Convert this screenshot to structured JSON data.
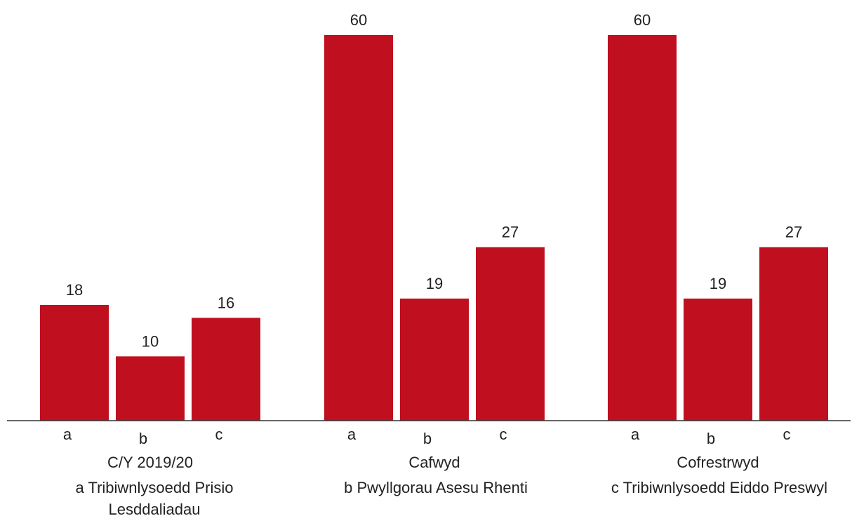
{
  "chart_data": {
    "type": "bar",
    "groups": [
      "C/Y 2019/20",
      "Cafwyd",
      "Cofrestrwyd"
    ],
    "categories": [
      "a",
      "b",
      "c"
    ],
    "values": [
      [
        18,
        10,
        16
      ],
      [
        60,
        19,
        27
      ],
      [
        60,
        19,
        27
      ]
    ],
    "ylim": [
      0,
      60
    ],
    "grid": false,
    "bar_color": "#c0101f",
    "legend": [
      {
        "key": "a",
        "lines": [
          "Tribiwnlysoedd Prisio",
          "Lesddaliadau"
        ]
      },
      {
        "key": "b",
        "lines": [
          "Pwyllgorau Asesu Rhenti"
        ]
      },
      {
        "key": "c",
        "lines": [
          "Tribiwnlysoedd Eiddo Preswyl"
        ]
      }
    ]
  }
}
